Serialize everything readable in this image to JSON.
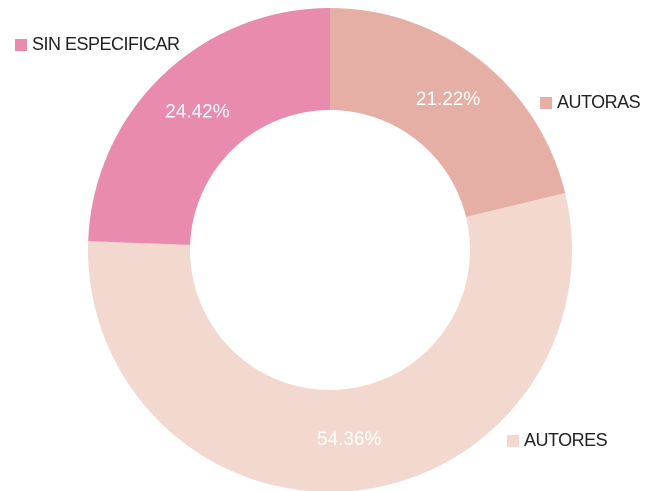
{
  "chart_data": {
    "type": "donut",
    "categories": [
      "AUTORAS",
      "AUTORES",
      "SIN ESPECIFICAR"
    ],
    "values": [
      21.22,
      54.36,
      24.42
    ],
    "value_labels": [
      "21.22%",
      "54.36%",
      "24.42%"
    ],
    "colors": [
      "#e5afa5",
      "#f2d8cf",
      "#e98bae"
    ]
  }
}
